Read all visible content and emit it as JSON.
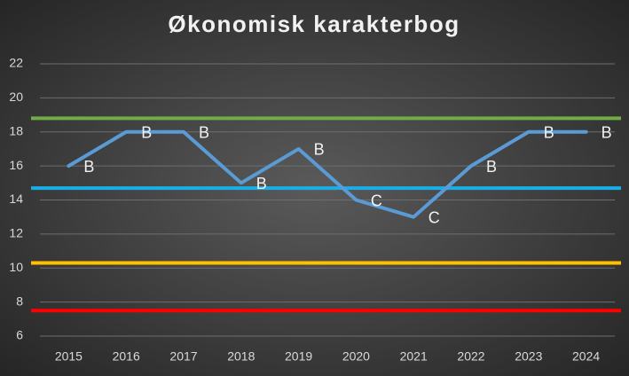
{
  "chart_data": {
    "type": "line",
    "title": "Økonomisk karakterbog",
    "categories": [
      "2015",
      "2016",
      "2017",
      "2018",
      "2019",
      "2020",
      "2021",
      "2022",
      "2023",
      "2024"
    ],
    "series": [
      {
        "color": "#5b9bd5",
        "values": [
          16,
          18,
          18,
          15,
          17,
          14,
          13,
          16,
          18,
          18
        ],
        "value_labels": [
          "B",
          "B",
          "B",
          "B",
          "B",
          "C",
          "C",
          "B",
          "B",
          "B"
        ]
      }
    ],
    "reference_lines": [
      {
        "value": 18.8,
        "color": "#70ad47"
      },
      {
        "value": 14.7,
        "color": "#1aaee8"
      },
      {
        "value": 10.3,
        "color": "#ffc000"
      },
      {
        "value": 7.5,
        "color": "#ff0000"
      }
    ],
    "ylim": [
      6,
      22
    ],
    "yticks": [
      6,
      8,
      10,
      12,
      14,
      16,
      18,
      20,
      22
    ],
    "grid": true
  }
}
